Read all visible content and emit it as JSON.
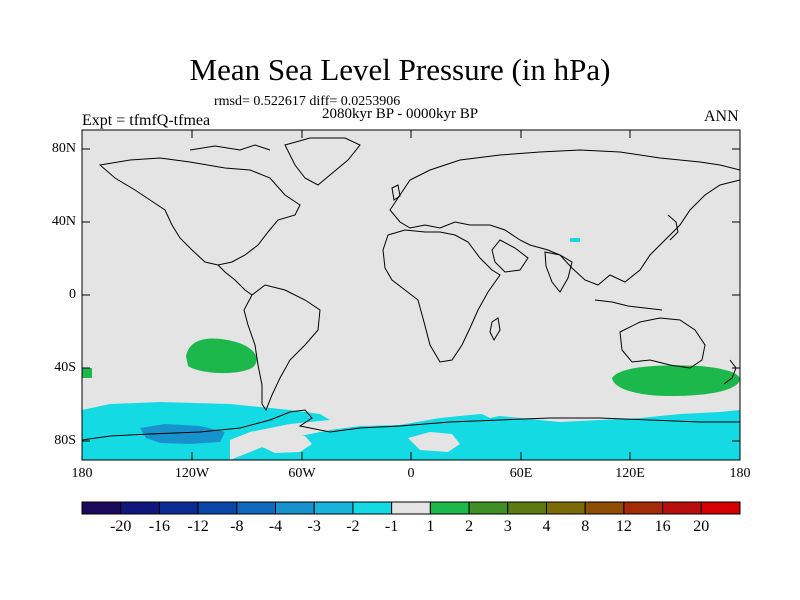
{
  "title": "Mean Sea Level Pressure (in hPa)",
  "stats_line": "rmsd= 0.522617  diff= 0.0253906",
  "period_line": "2080kyr BP - 0000kyr BP",
  "experiment": "Expt = tfmfQ-tfmea",
  "season": "ANN",
  "lat_labels": [
    "80N",
    "40N",
    "0",
    "40S",
    "80S"
  ],
  "lon_labels": [
    "180",
    "120W",
    "60W",
    "0",
    "60E",
    "120E",
    "180"
  ],
  "colorbar": {
    "labels": [
      "-20",
      "-16",
      "-12",
      "-8",
      "-4",
      "-3",
      "-2",
      "-1",
      "1",
      "2",
      "3",
      "4",
      "8",
      "12",
      "16",
      "20"
    ],
    "colors": [
      "#1a0a5c",
      "#0f177c",
      "#0a2b92",
      "#0a46a8",
      "#0f68bc",
      "#1892cd",
      "#16b4da",
      "#14dbe3",
      "#e4e4e4",
      "#1cb84c",
      "#3e8f26",
      "#5c7a12",
      "#7a6a08",
      "#8e4e04",
      "#a42a08",
      "#ba0e0e",
      "#d40000"
    ]
  },
  "colors": {
    "ocean_neutral": "#e4e4e4",
    "coastline": "#000000"
  }
}
